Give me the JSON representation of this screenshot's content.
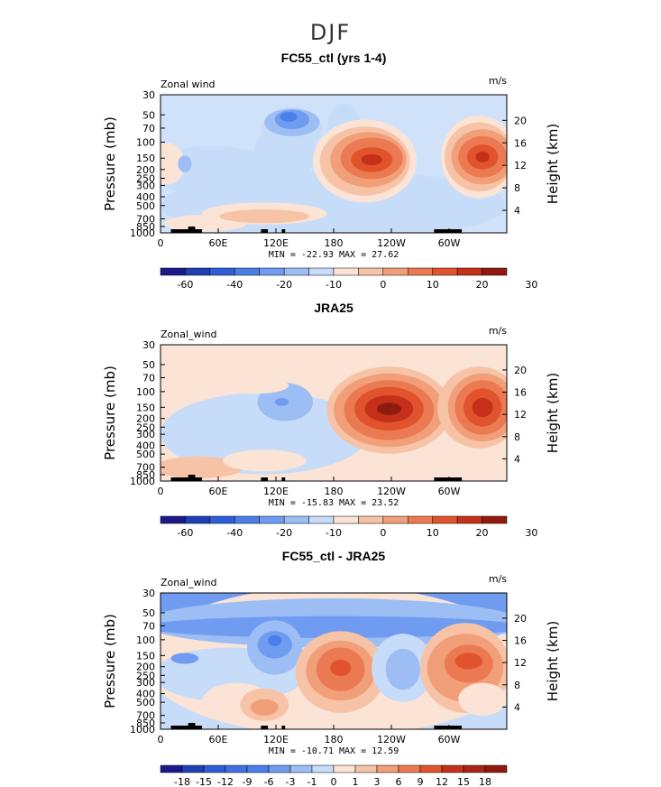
{
  "page_title": "DJF",
  "chart_data": [
    {
      "type": "contour",
      "title": "FC55_ctl (yrs 1-4)",
      "left_label": "Zonal wind",
      "units": "m/s",
      "ylabel": "Pressure (mb)",
      "y2label": "Height (km)",
      "x_ticks": [
        "0",
        "60E",
        "120E",
        "180",
        "120W",
        "60W"
      ],
      "p_ticks": [
        "30",
        "50",
        "70",
        "100",
        "150",
        "200",
        "250",
        "300",
        "400",
        "500",
        "700",
        "850",
        "1000"
      ],
      "h_ticks": [
        "20",
        "16",
        "12",
        "8",
        "4"
      ],
      "stats": "MIN = -22.93  MAX =  27.62",
      "colorbar_labels": [
        "-60",
        "-40",
        "-20",
        "-10",
        "0",
        "10",
        "20",
        "30"
      ],
      "colors": [
        "#1a1a8c",
        "#1f3fb3",
        "#2f5fd6",
        "#4a7fe8",
        "#6f9cf0",
        "#9cbef5",
        "#c7dcf8",
        "#fbe4d6",
        "#f6c3a6",
        "#f19f79",
        "#eb7a52",
        "#e0532d",
        "#c4301a",
        "#8f1a0f"
      ],
      "min": -22.93,
      "max": 27.62
    },
    {
      "type": "contour",
      "title": "JRA25",
      "left_label": "Zonal_wind",
      "units": "m/s",
      "ylabel": "Pressure (mb)",
      "y2label": "Height (km)",
      "x_ticks": [
        "0",
        "60E",
        "120E",
        "180",
        "120W",
        "60W"
      ],
      "p_ticks": [
        "30",
        "50",
        "70",
        "100",
        "150",
        "200",
        "250",
        "300",
        "400",
        "500",
        "700",
        "850",
        "1000"
      ],
      "h_ticks": [
        "20",
        "16",
        "12",
        "8",
        "4"
      ],
      "stats": "MIN = -15.83  MAX =  23.52",
      "colorbar_labels": [
        "-60",
        "-40",
        "-20",
        "-10",
        "0",
        "10",
        "20",
        "30"
      ],
      "colors": [
        "#1a1a8c",
        "#1f3fb3",
        "#2f5fd6",
        "#4a7fe8",
        "#6f9cf0",
        "#9cbef5",
        "#c7dcf8",
        "#fbe4d6",
        "#f6c3a6",
        "#f19f79",
        "#eb7a52",
        "#e0532d",
        "#c4301a",
        "#8f1a0f"
      ],
      "min": -15.83,
      "max": 23.52
    },
    {
      "type": "contour",
      "title": "FC55_ctl - JRA25",
      "left_label": "Zonal_wind",
      "units": "m/s",
      "ylabel": "Pressure (mb)",
      "y2label": "Height (km)",
      "x_ticks": [
        "0",
        "60E",
        "120E",
        "180",
        "120W",
        "60W"
      ],
      "p_ticks": [
        "30",
        "50",
        "70",
        "100",
        "150",
        "200",
        "250",
        "300",
        "400",
        "500",
        "700",
        "850",
        "1000"
      ],
      "h_ticks": [
        "20",
        "16",
        "12",
        "8",
        "4"
      ],
      "stats": "MIN = -10.71  MAX =  12.59",
      "colorbar_labels": [
        "-18",
        "-15",
        "-12",
        "-9",
        "-6",
        "-3",
        "-1",
        "0",
        "1",
        "3",
        "6",
        "9",
        "12",
        "15",
        "18"
      ],
      "colors": [
        "#1a1a8c",
        "#1f3fb3",
        "#2f5fd6",
        "#3f6fe0",
        "#4a7fe8",
        "#6f9cf0",
        "#9cbef5",
        "#c7dcf8",
        "#fbe4d6",
        "#f6c3a6",
        "#f19f79",
        "#eb7a52",
        "#e0532d",
        "#c4301a",
        "#a82415",
        "#8f1a0f"
      ],
      "min": -10.71,
      "max": 12.59
    }
  ]
}
